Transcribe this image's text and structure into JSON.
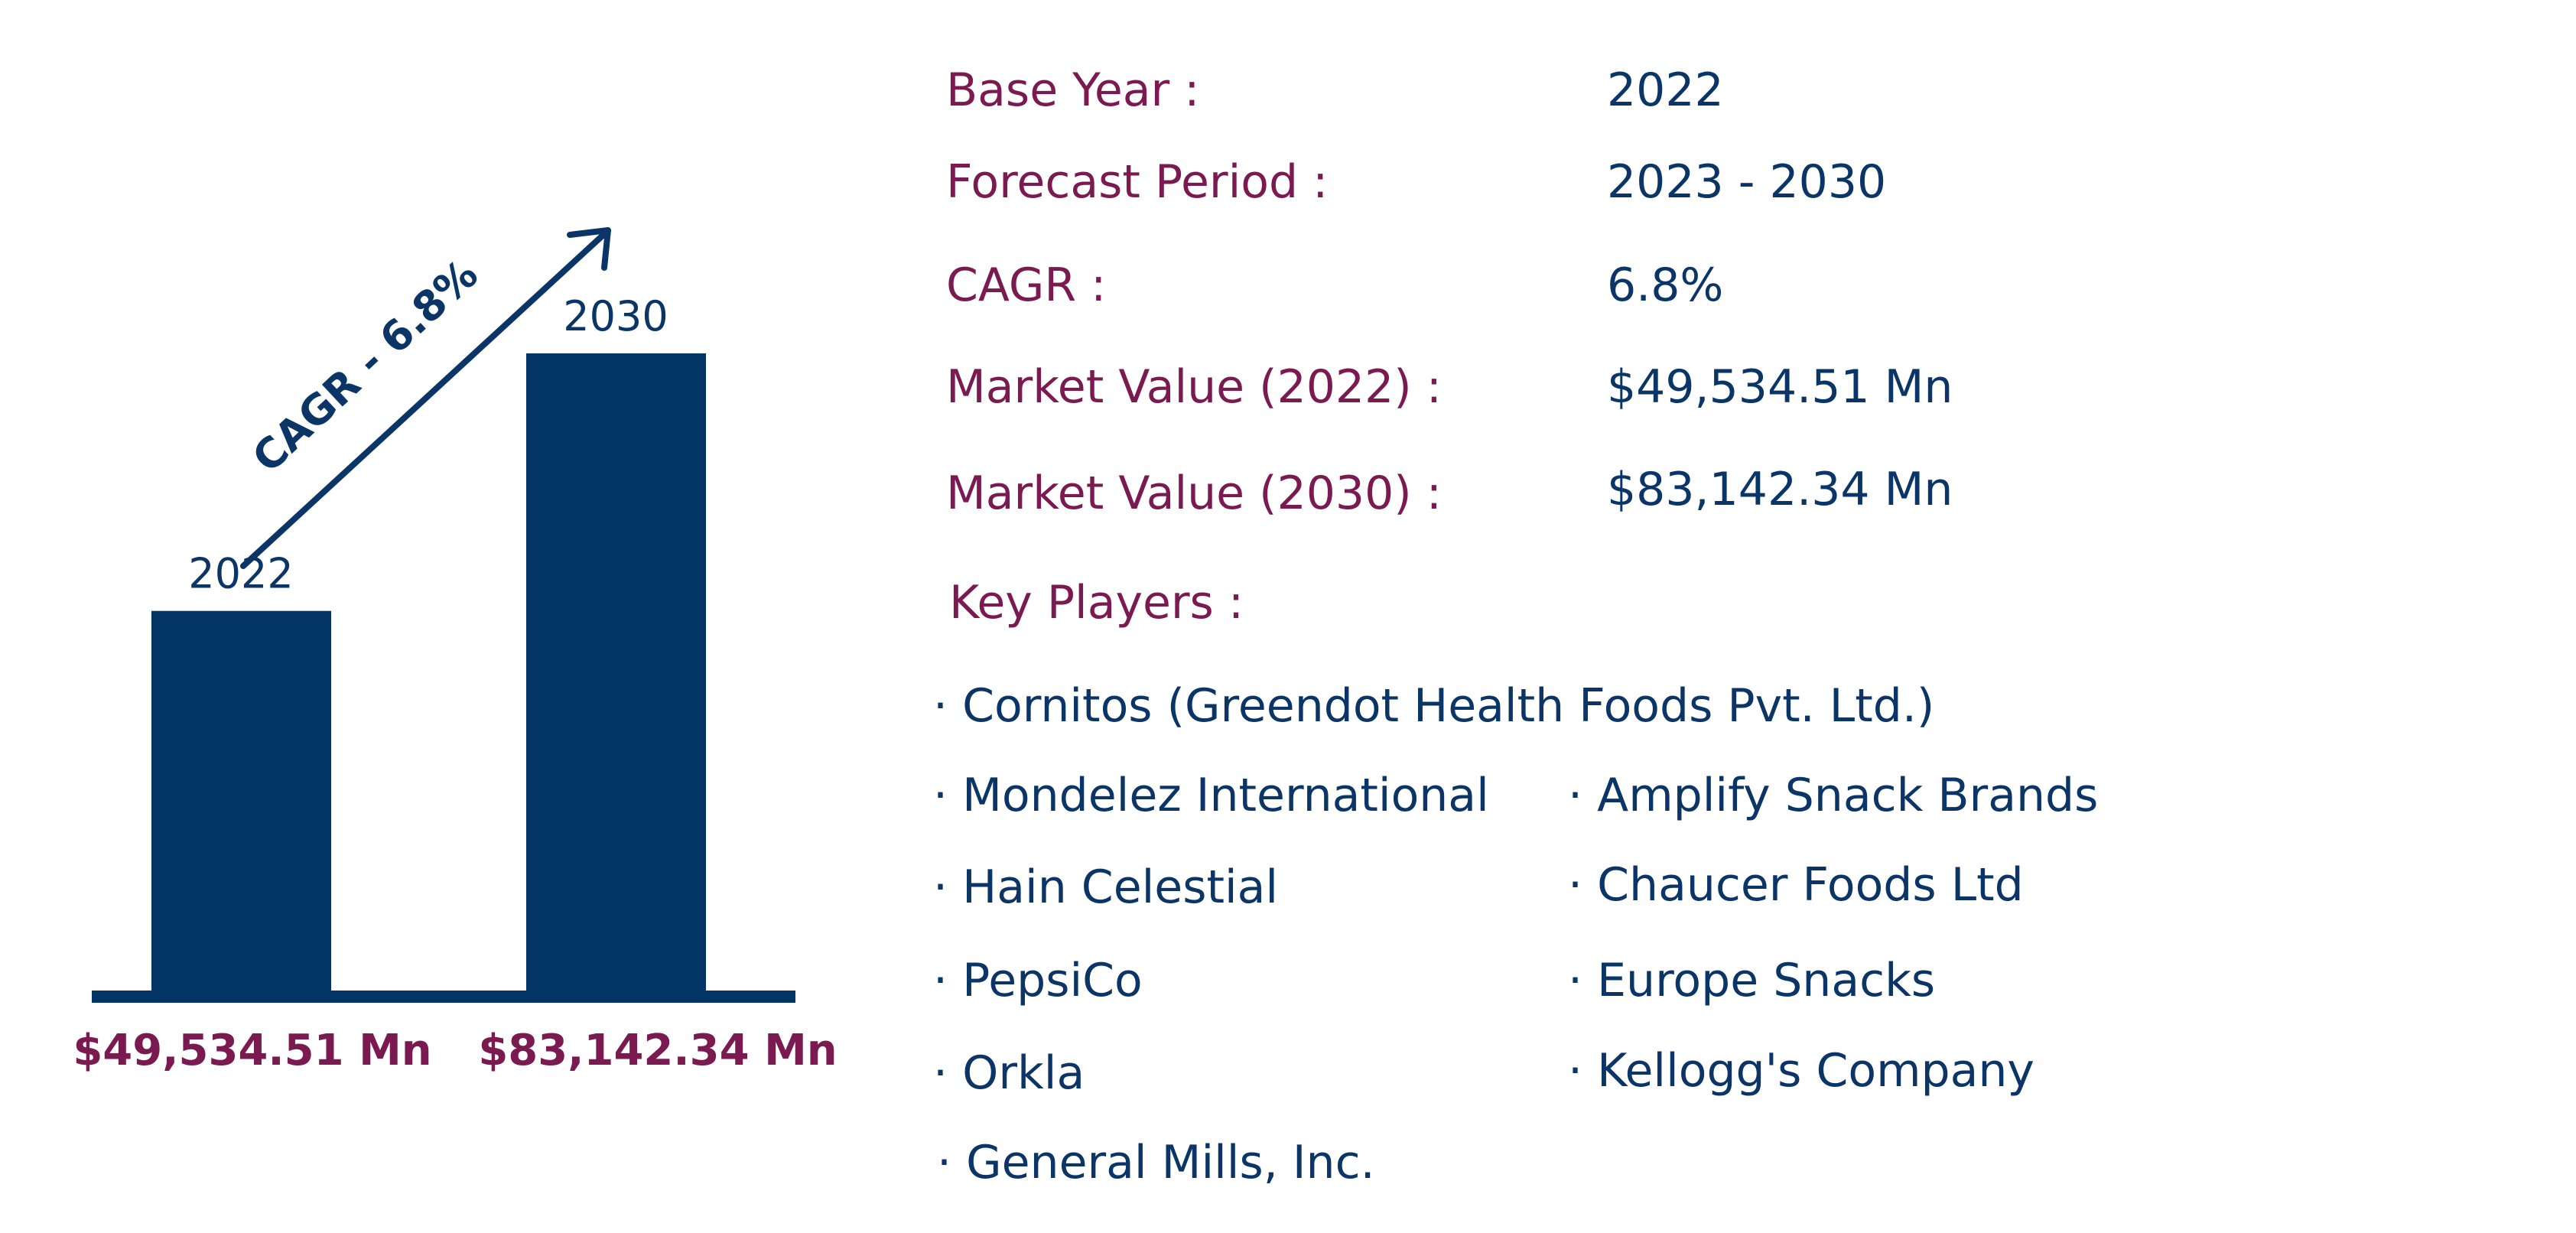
{
  "colors": {
    "bar": "#023466",
    "label": "#7a1a50",
    "value": "#0b3566"
  },
  "info": {
    "base_year_label": "Base Year :",
    "base_year_value": "2022",
    "forecast_label": "Forecast Period :",
    "forecast_value": "2023 - 2030",
    "cagr_label": "CAGR :",
    "cagr_value": "6.8%",
    "mv2022_label": "Market Value (2022) :",
    "mv2022_value": "$49,534.51 Mn",
    "mv2030_label": "Market Value (2030) :",
    "mv2030_value": "$83,142.34 Mn",
    "key_players_label": "Key Players :"
  },
  "players": {
    "p1": "· Cornitos (Greendot Health Foods Pvt. Ltd.)",
    "p2": "· Mondelez International",
    "p3": "· Amplify Snack Brands",
    "p4": "· Hain Celestial",
    "p5": "· Chaucer Foods Ltd",
    "p6": "· PepsiCo",
    "p7": "· Europe Snacks",
    "p8": "· Orkla",
    "p9": "· Kellogg's Company",
    "p10": "· General Mills, Inc."
  },
  "chart_data": {
    "type": "bar",
    "categories": [
      "2022",
      "2030"
    ],
    "values": [
      49534.51,
      83142.34
    ],
    "value_labels": [
      "$49,534.51 Mn",
      "$83,142.34 Mn"
    ],
    "annotation": "CAGR - 6.8%",
    "legend": "none",
    "grid": false
  }
}
